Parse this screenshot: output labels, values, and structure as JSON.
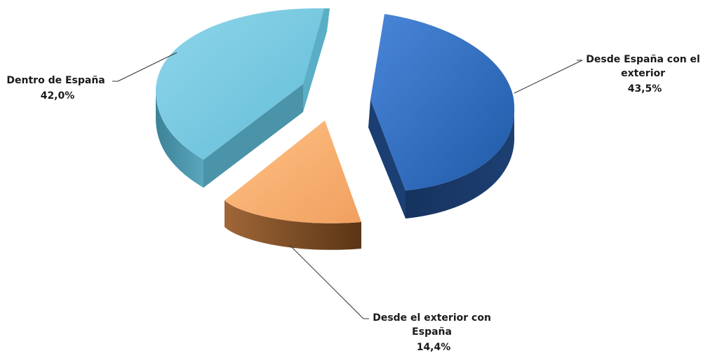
{
  "chart_data": {
    "type": "pie",
    "variant": "3d-exploded",
    "title": "",
    "legend": "none",
    "series": [
      {
        "values": [
          43.5,
          14.4,
          42.0
        ],
        "categories": [
          "Desde España  con el exterior",
          "Desde el exterior con España",
          "Dentro de España"
        ],
        "percent_labels": [
          "43,5%",
          "14,4%",
          "42,0%"
        ],
        "colors": [
          "#2e6cc4",
          "#f5ad6c",
          "#6fc5df"
        ]
      }
    ],
    "labels": [
      {
        "lines": [
          "Desde España  con el",
          "exterior"
        ],
        "value": "43,5%"
      },
      {
        "lines": [
          "Desde el exterior con",
          "España"
        ],
        "value": "14,4%"
      },
      {
        "lines": [
          "Dentro de España"
        ],
        "value": "42,0%"
      }
    ]
  }
}
